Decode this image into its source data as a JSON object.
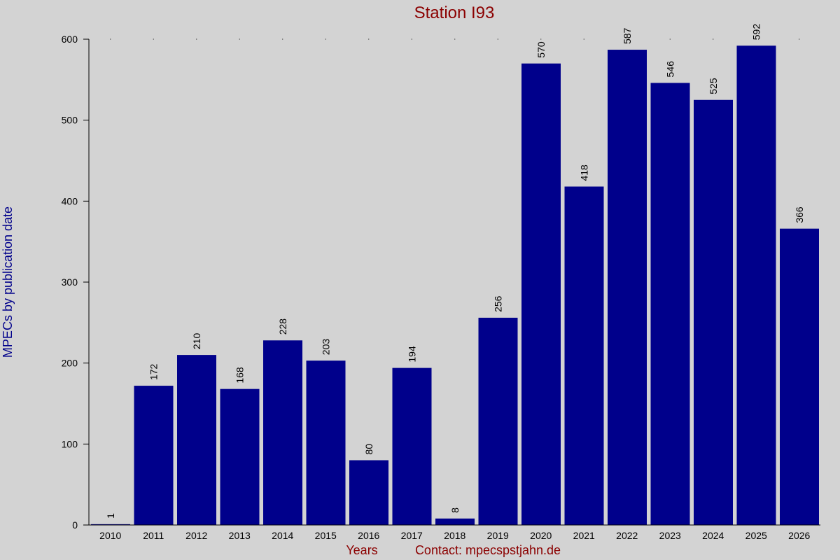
{
  "chart_data": {
    "type": "bar",
    "title": "Station I93",
    "xlabel": "Years",
    "ylabel": "MPECs by publication date",
    "contact": "Contact: mpecspstjahn.de",
    "categories": [
      "2010",
      "2011",
      "2012",
      "2013",
      "2014",
      "2015",
      "2016",
      "2017",
      "2018",
      "2019",
      "2020",
      "2021",
      "2022",
      "2023",
      "2024",
      "2025",
      "2026"
    ],
    "values": [
      1,
      172,
      210,
      168,
      228,
      203,
      80,
      194,
      8,
      256,
      570,
      418,
      587,
      546,
      525,
      592,
      366
    ],
    "ylim": [
      0,
      600
    ],
    "yticks": [
      0,
      100,
      200,
      300,
      400,
      500,
      600
    ],
    "bar_color": "#00008b",
    "background_color": "#d3d3d3",
    "title_color": "#8b0000",
    "ylabel_color": "#00008b",
    "grid": false
  }
}
